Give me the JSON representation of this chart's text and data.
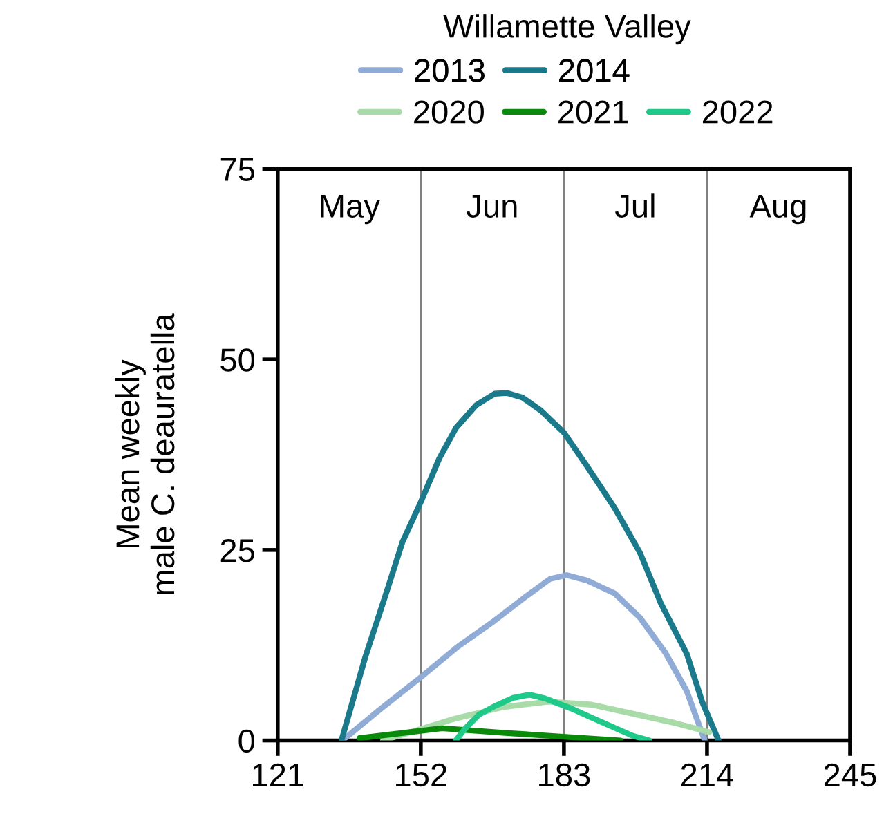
{
  "chart_data": {
    "type": "line",
    "title": "Willamette Valley",
    "ylabel": "Mean weekly\nmale C. deauratella",
    "xlim": [
      121,
      245
    ],
    "xticks": [
      121,
      152,
      183,
      214,
      245
    ],
    "ylim": [
      0,
      75
    ],
    "yticks": [
      0,
      25,
      50,
      75
    ],
    "grid": false,
    "legend": "top",
    "marker": "none",
    "line_style": "solid",
    "ref_lines": [
      {
        "axis": "x",
        "value": 152,
        "color": "#808080"
      },
      {
        "axis": "x",
        "value": 183,
        "color": "#808080"
      },
      {
        "axis": "x",
        "value": 214,
        "color": "#808080"
      }
    ],
    "annotations": [
      "May",
      "Jun",
      "Jul",
      "Aug"
    ],
    "series": [
      {
        "name": "2013",
        "color": "#8fabd6",
        "x": [
          135,
          143,
          152,
          160,
          167.7,
          175,
          180,
          183.6,
          188,
          194,
          199.5,
          205,
          209.6,
          213.5
        ],
        "values": [
          0,
          4,
          8.3,
          12.3,
          15.6,
          19,
          21.2,
          21.7,
          21,
          19.3,
          16.1,
          11.5,
          6.5,
          0
        ]
      },
      {
        "name": "2014",
        "color": "#1a7a8c",
        "x": [
          134.8,
          140,
          144.7,
          148,
          152,
          156,
          159.6,
          164,
          168,
          170.7,
          174,
          178,
          183,
          188,
          194,
          199.5,
          204,
          209.6,
          213,
          216.5
        ],
        "values": [
          0,
          11,
          19.7,
          26,
          31.3,
          37,
          41,
          44,
          45.5,
          45.6,
          45,
          43.3,
          40.4,
          36,
          30.5,
          24.6,
          18,
          11.4,
          5,
          0
        ]
      },
      {
        "name": "2020",
        "color": "#a8dba8",
        "x": [
          143.8,
          152,
          159.6,
          170,
          179.7,
          189,
          199.5,
          207,
          214.5
        ],
        "values": [
          0,
          1.5,
          2.9,
          4.4,
          5.1,
          4.7,
          3.3,
          2.3,
          1.1
        ]
      },
      {
        "name": "2021",
        "color": "#0a8a0a",
        "x": [
          138.7,
          156.6,
          170.3,
          195.3
        ],
        "values": [
          0.3,
          1.6,
          1.0,
          0
        ]
      },
      {
        "name": "2022",
        "color": "#1fc98a",
        "x": [
          159.6,
          161.5,
          164.6,
          168,
          172,
          175.6,
          179,
          184.6,
          189,
          194.6,
          198,
          201.5
        ],
        "values": [
          0,
          1.5,
          3.4,
          4.5,
          5.6,
          6.0,
          5.5,
          4.2,
          3,
          1.5,
          0.6,
          0
        ]
      }
    ]
  }
}
